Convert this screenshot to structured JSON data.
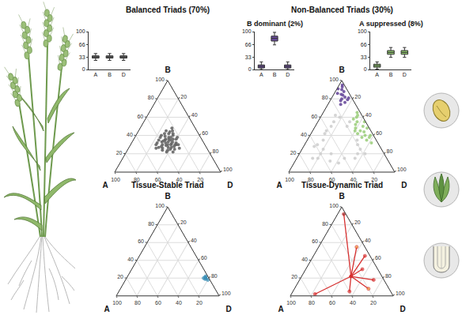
{
  "chart_data": [
    {
      "type": "ternary",
      "title": "Balanced Triads (70%)",
      "axis_labels": {
        "A": "A",
        "B": "B",
        "D": "D"
      },
      "ticks": [
        20,
        40,
        60,
        80,
        100
      ],
      "sum": 100,
      "grid": true,
      "series": [
        {
          "color": "#666666",
          "marker": "circle",
          "A": [
            33,
            30,
            36,
            28,
            40,
            25,
            35,
            30,
            42,
            38,
            27,
            32,
            45,
            24,
            36,
            29,
            22,
            40,
            31,
            34,
            37,
            26,
            33,
            44,
            28,
            38,
            30,
            35,
            32,
            41,
            26,
            23,
            46,
            25,
            34,
            39,
            31,
            43,
            27,
            36,
            29,
            33,
            37,
            24,
            42,
            31,
            35,
            28,
            48,
            22,
            26
          ],
          "B": [
            33,
            35,
            32,
            38,
            30,
            40,
            25,
            28,
            28,
            38,
            30,
            42,
            27,
            36,
            40,
            45,
            38,
            22,
            31,
            36,
            29,
            32,
            27,
            32,
            42,
            24,
            38,
            35,
            30,
            35,
            44,
            45,
            30,
            30,
            22,
            33,
            25,
            24,
            36,
            27,
            33,
            39,
            34,
            42,
            26,
            36,
            30,
            30,
            26,
            48,
            26
          ],
          "D": [
            34,
            35,
            32,
            34,
            30,
            35,
            40,
            42,
            30,
            24,
            43,
            26,
            28,
            40,
            24,
            26,
            40,
            38,
            38,
            30,
            34,
            42,
            40,
            24,
            30,
            38,
            32,
            30,
            38,
            24,
            30,
            32,
            24,
            45,
            44,
            28,
            44,
            33,
            37,
            37,
            38,
            28,
            29,
            34,
            32,
            33,
            35,
            42,
            26,
            30,
            48
          ]
        }
      ]
    },
    {
      "type": "box",
      "categories": [
        "A",
        "B",
        "D"
      ],
      "color": "#6b6b6b",
      "ylim": [
        0,
        100
      ],
      "yticks": [
        0,
        33,
        66,
        100
      ],
      "q1": [
        30,
        30,
        30
      ],
      "median": [
        33,
        33,
        33
      ],
      "q3": [
        36,
        36,
        36
      ],
      "lower": [
        24,
        24,
        24
      ],
      "upper": [
        42,
        42,
        42
      ]
    },
    {
      "type": "ternary",
      "title": "Non-Balanced Triads (30%)",
      "axis_labels": {
        "A": "A",
        "B": "B",
        "D": "D"
      },
      "ticks": [
        20,
        40,
        60,
        80,
        100
      ],
      "sum": 100,
      "grid": true,
      "series": [
        {
          "color": "#cfcfcf",
          "marker": "circle",
          "A": [
            20,
            50,
            18,
            45,
            55,
            60,
            25,
            20,
            50,
            35,
            40,
            15,
            65,
            30,
            58,
            22,
            48,
            18,
            70,
            30,
            42,
            55,
            25,
            62,
            20
          ],
          "B": [
            50,
            20,
            35,
            42,
            25,
            20,
            20,
            25,
            35,
            50,
            15,
            55,
            15,
            15,
            30,
            60,
            10,
            20,
            15,
            55,
            45,
            12,
            62,
            28,
            30
          ],
          "D": [
            30,
            30,
            47,
            13,
            20,
            20,
            55,
            55,
            15,
            15,
            45,
            30,
            20,
            55,
            12,
            18,
            42,
            62,
            15,
            15,
            13,
            33,
            13,
            10,
            50
          ]
        },
        {
          "color": "#6a4c9c",
          "marker": "circle",
          "A": [
            5,
            8,
            3,
            10,
            6,
            12,
            4,
            9,
            2,
            7,
            14,
            5,
            11,
            3,
            8
          ],
          "B": [
            90,
            85,
            93,
            80,
            82,
            78,
            88,
            76,
            95,
            84,
            74,
            79,
            86,
            81,
            91
          ],
          "D": [
            5,
            7,
            4,
            10,
            12,
            10,
            8,
            15,
            3,
            9,
            12,
            16,
            3,
            16,
            1
          ]
        },
        {
          "color": "#9fcf7f",
          "marker": "circle",
          "A": [
            5,
            10,
            8,
            3,
            12,
            6,
            2,
            14,
            9,
            4,
            11,
            7,
            1,
            13,
            6,
            10,
            3,
            8,
            15,
            5
          ],
          "B": [
            50,
            45,
            55,
            40,
            38,
            60,
            48,
            42,
            35,
            62,
            52,
            44,
            55,
            48,
            32,
            58,
            65,
            40,
            45,
            38
          ],
          "D": [
            45,
            45,
            37,
            57,
            50,
            34,
            50,
            44,
            56,
            34,
            37,
            49,
            44,
            39,
            62,
            32,
            32,
            52,
            40,
            57
          ]
        }
      ]
    },
    {
      "type": "box",
      "title": "B dominant (2%)",
      "categories": [
        "A",
        "B",
        "D"
      ],
      "color": "#6a4c9c",
      "ylim": [
        0,
        100
      ],
      "yticks": [
        0,
        33,
        66,
        100
      ],
      "q1": [
        4,
        75,
        4
      ],
      "median": [
        8,
        82,
        8
      ],
      "q3": [
        12,
        88,
        12
      ],
      "lower": [
        0,
        65,
        0
      ],
      "upper": [
        20,
        98,
        20
      ]
    },
    {
      "type": "box",
      "title": "A suppressed (8%)",
      "categories": [
        "A",
        "B",
        "D"
      ],
      "color": "#8cc46a",
      "ylim": [
        0,
        100
      ],
      "yticks": [
        0,
        33,
        66,
        100
      ],
      "q1": [
        6,
        40,
        40
      ],
      "median": [
        10,
        45,
        45
      ],
      "q3": [
        14,
        50,
        50
      ],
      "lower": [
        1,
        32,
        32
      ],
      "upper": [
        20,
        58,
        58
      ]
    },
    {
      "type": "ternary_lines",
      "title": "Tissue-Stable Triad",
      "axis_labels": {
        "A": "A",
        "B": "B",
        "D": "D"
      },
      "ticks": [
        20,
        40,
        60,
        80,
        100
      ],
      "sum": 100,
      "grid": true,
      "color": "#3a8fb7",
      "center": {
        "A": 3,
        "B": 20,
        "D": 77
      },
      "tissues": {
        "A": [
          2,
          4,
          3,
          5,
          2
        ],
        "B": [
          22,
          19,
          21,
          20,
          18
        ],
        "D": [
          76,
          77,
          76,
          75,
          80
        ]
      }
    },
    {
      "type": "ternary_lines",
      "title": "Tissue-Dynamic Triad",
      "axis_labels": {
        "A": "A",
        "B": "B",
        "D": "D"
      },
      "ticks": [
        20,
        40,
        60,
        80,
        100
      ],
      "sum": 100,
      "grid": true,
      "color": "#d62f2f",
      "center": {
        "A": 30,
        "B": 22,
        "D": 48
      },
      "tissues": {
        "A": [
          2,
          75,
          5,
          10,
          15,
          40,
          20,
          8
        ],
        "B": [
          92,
          2,
          45,
          18,
          30,
          5,
          8,
          55
        ],
        "D": [
          6,
          23,
          50,
          72,
          55,
          55,
          72,
          37
        ]
      },
      "colors": [
        "#8b1a1a",
        "#d62f2f",
        "#d62f2f",
        "#d62f2f",
        "#d62f2f",
        "#d62f2f",
        "#f0a030",
        "#f0a030"
      ]
    }
  ]
}
